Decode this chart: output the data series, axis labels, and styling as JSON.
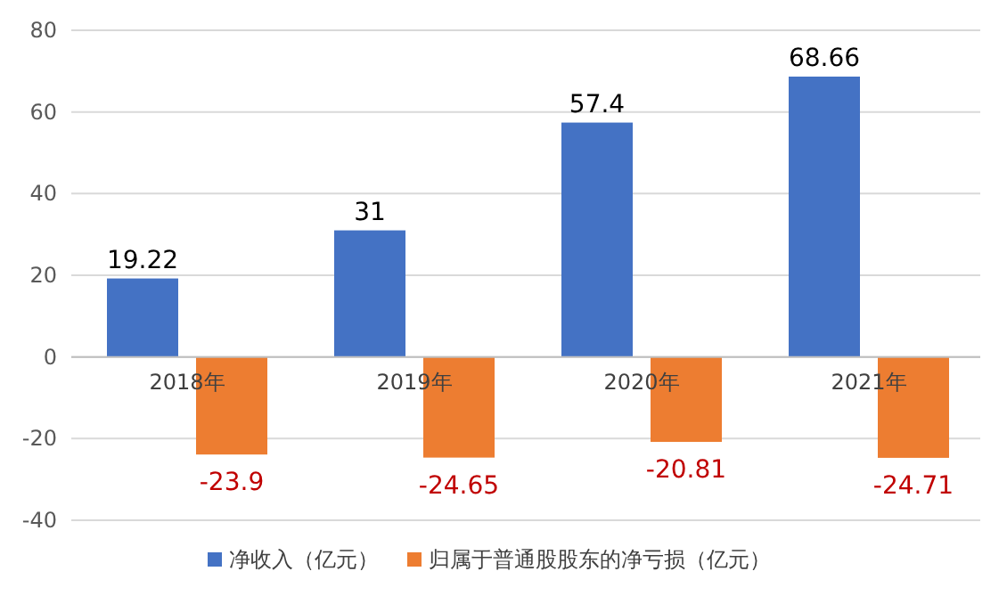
{
  "chart_data": {
    "type": "bar",
    "categories": [
      "2018年",
      "2019年",
      "2020年",
      "2021年"
    ],
    "series": [
      {
        "name": "净收入（亿元）",
        "color": "#4472c4",
        "values": [
          19.22,
          31,
          57.4,
          68.66
        ]
      },
      {
        "name": "归属于普通股股东的净亏损（亿元）",
        "color": "#ed7d31",
        "values": [
          -23.9,
          -24.65,
          -20.81,
          -24.71
        ]
      }
    ],
    "ylim": [
      -40,
      80
    ],
    "yticks": [
      -40,
      -20,
      0,
      20,
      40,
      60,
      80
    ],
    "grid": "y",
    "legend": "bottom",
    "data_labels": true
  }
}
